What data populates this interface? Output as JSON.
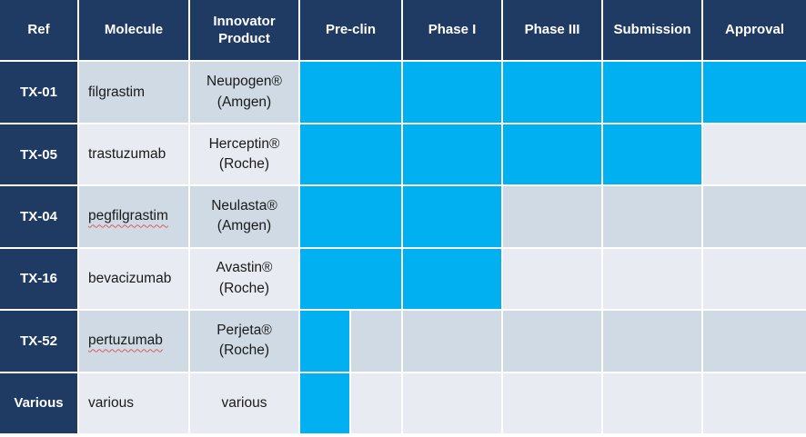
{
  "chart_data": {
    "type": "table",
    "subtype": "drug-development-pipeline-gantt",
    "columns": [
      "Ref",
      "Molecule",
      "Innovator Product",
      "Pre-clin",
      "Phase I",
      "Phase III",
      "Submission",
      "Approval"
    ],
    "phase_columns": [
      "Pre-clin",
      "Phase I",
      "Phase III",
      "Submission",
      "Approval"
    ],
    "rows": [
      {
        "ref": "TX-01",
        "molecule": "filgrastim",
        "misspelled": false,
        "product_line1": "Neupogen®",
        "product_line2": "(Amgen)",
        "phase_fill": [
          1,
          1,
          1,
          1,
          1
        ],
        "furthest_stage": "Approval"
      },
      {
        "ref": "TX-05",
        "molecule": "trastuzumab",
        "misspelled": false,
        "product_line1": "Herceptin®",
        "product_line2": "(Roche)",
        "phase_fill": [
          1,
          1,
          1,
          1,
          0
        ],
        "furthest_stage": "Submission"
      },
      {
        "ref": "TX-04",
        "molecule": "pegfilgrastim",
        "misspelled": true,
        "product_line1": "Neulasta®",
        "product_line2": "(Amgen)",
        "phase_fill": [
          1,
          1,
          0,
          0,
          0
        ],
        "furthest_stage": "Phase I"
      },
      {
        "ref": "TX-16",
        "molecule": "bevacizumab",
        "misspelled": false,
        "product_line1": "Avastin®",
        "product_line2": "(Roche)",
        "phase_fill": [
          1,
          1,
          0,
          0,
          0
        ],
        "furthest_stage": "Phase I"
      },
      {
        "ref": "TX-52",
        "molecule": "pertuzumab",
        "misspelled": true,
        "product_line1": "Perjeta®",
        "product_line2": "(Roche)",
        "phase_fill": [
          0.5,
          0,
          0,
          0,
          0
        ],
        "furthest_stage": "Pre-clin (partial)"
      },
      {
        "ref": "Various",
        "molecule": "various",
        "misspelled": false,
        "product_line1": "various",
        "product_line2": "",
        "phase_fill": [
          0.5,
          0,
          0,
          0,
          0
        ],
        "furthest_stage": "Pre-clin (partial)"
      }
    ]
  },
  "colors": {
    "header_navy": "#1F3A63",
    "bar_cyan": "#00B0F0",
    "band_odd": "#CFDAE4",
    "band_even": "#E9EBF3",
    "gridline_white": "#FFFFFF",
    "body_text": "#1A1A1A",
    "spellcheck_red": "#E05A5A"
  }
}
